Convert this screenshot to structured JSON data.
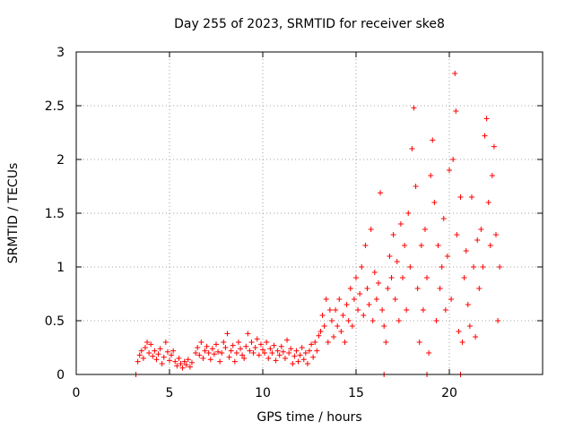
{
  "chart_data": {
    "type": "scatter",
    "title": "Day 255 of 2023, SRMTID for receiver ske8",
    "xlabel": "GPS time / hours",
    "ylabel": "SRMTID / TECUs",
    "xlim": [
      0,
      25
    ],
    "ylim": [
      0,
      3
    ],
    "x_ticks": [
      0,
      5,
      10,
      15,
      20
    ],
    "x_tick_labels": [
      "0",
      "5",
      "10",
      "15",
      "20"
    ],
    "y_ticks": [
      0,
      0.5,
      1,
      1.5,
      2,
      2.5,
      3
    ],
    "y_tick_labels": [
      "0",
      "0.5",
      "1",
      "1.5",
      "2",
      "2.5",
      "3"
    ],
    "grid": true,
    "marker": "+",
    "color": "#ff0000",
    "series": [
      {
        "name": "SRMTID",
        "points": [
          [
            3.2,
            0.0
          ],
          [
            16.5,
            0.0
          ],
          [
            18.8,
            0.0
          ],
          [
            20.6,
            0.0
          ],
          [
            3.3,
            0.12
          ],
          [
            3.4,
            0.18
          ],
          [
            3.5,
            0.22
          ],
          [
            3.6,
            0.15
          ],
          [
            3.7,
            0.25
          ],
          [
            3.8,
            0.3
          ],
          [
            3.9,
            0.2
          ],
          [
            4.0,
            0.28
          ],
          [
            4.1,
            0.17
          ],
          [
            4.2,
            0.22
          ],
          [
            4.3,
            0.14
          ],
          [
            4.4,
            0.19
          ],
          [
            4.5,
            0.24
          ],
          [
            4.6,
            0.1
          ],
          [
            4.7,
            0.16
          ],
          [
            4.8,
            0.3
          ],
          [
            4.9,
            0.21
          ],
          [
            5.0,
            0.13
          ],
          [
            5.1,
            0.18
          ],
          [
            5.2,
            0.22
          ],
          [
            5.3,
            0.12
          ],
          [
            5.4,
            0.08
          ],
          [
            5.5,
            0.15
          ],
          [
            5.6,
            0.1
          ],
          [
            5.7,
            0.06
          ],
          [
            5.8,
            0.12
          ],
          [
            5.9,
            0.09
          ],
          [
            6.0,
            0.14
          ],
          [
            6.1,
            0.07
          ],
          [
            6.2,
            0.11
          ],
          [
            6.4,
            0.2
          ],
          [
            6.5,
            0.25
          ],
          [
            6.6,
            0.18
          ],
          [
            6.7,
            0.3
          ],
          [
            6.8,
            0.15
          ],
          [
            6.9,
            0.22
          ],
          [
            7.0,
            0.26
          ],
          [
            7.1,
            0.2
          ],
          [
            7.2,
            0.14
          ],
          [
            7.3,
            0.24
          ],
          [
            7.4,
            0.19
          ],
          [
            7.5,
            0.28
          ],
          [
            7.6,
            0.21
          ],
          [
            7.7,
            0.12
          ],
          [
            7.8,
            0.2
          ],
          [
            7.9,
            0.3
          ],
          [
            8.0,
            0.25
          ],
          [
            8.1,
            0.38
          ],
          [
            8.2,
            0.16
          ],
          [
            8.3,
            0.22
          ],
          [
            8.4,
            0.27
          ],
          [
            8.5,
            0.12
          ],
          [
            8.6,
            0.2
          ],
          [
            8.7,
            0.3
          ],
          [
            8.8,
            0.24
          ],
          [
            8.9,
            0.18
          ],
          [
            9.0,
            0.15
          ],
          [
            9.1,
            0.26
          ],
          [
            9.2,
            0.38
          ],
          [
            9.3,
            0.22
          ],
          [
            9.4,
            0.3
          ],
          [
            9.5,
            0.2
          ],
          [
            9.6,
            0.25
          ],
          [
            9.7,
            0.33
          ],
          [
            9.8,
            0.18
          ],
          [
            9.9,
            0.28
          ],
          [
            10.0,
            0.23
          ],
          [
            10.1,
            0.2
          ],
          [
            10.2,
            0.3
          ],
          [
            10.3,
            0.15
          ],
          [
            10.4,
            0.24
          ],
          [
            10.5,
            0.2
          ],
          [
            10.6,
            0.27
          ],
          [
            10.7,
            0.13
          ],
          [
            10.8,
            0.22
          ],
          [
            10.9,
            0.18
          ],
          [
            11.0,
            0.26
          ],
          [
            11.1,
            0.21
          ],
          [
            11.2,
            0.15
          ],
          [
            11.3,
            0.32
          ],
          [
            11.4,
            0.2
          ],
          [
            11.5,
            0.24
          ],
          [
            11.6,
            0.1
          ],
          [
            11.7,
            0.17
          ],
          [
            11.8,
            0.22
          ],
          [
            11.9,
            0.12
          ],
          [
            12.0,
            0.18
          ],
          [
            12.1,
            0.25
          ],
          [
            12.2,
            0.14
          ],
          [
            12.3,
            0.2
          ],
          [
            12.4,
            0.1
          ],
          [
            12.5,
            0.22
          ],
          [
            12.6,
            0.28
          ],
          [
            12.7,
            0.16
          ],
          [
            12.8,
            0.3
          ],
          [
            12.9,
            0.22
          ],
          [
            13.0,
            0.36
          ],
          [
            13.1,
            0.4
          ],
          [
            13.2,
            0.55
          ],
          [
            13.3,
            0.45
          ],
          [
            13.4,
            0.7
          ],
          [
            13.5,
            0.3
          ],
          [
            13.6,
            0.6
          ],
          [
            13.7,
            0.5
          ],
          [
            13.8,
            0.35
          ],
          [
            13.9,
            0.6
          ],
          [
            14.0,
            0.45
          ],
          [
            14.1,
            0.7
          ],
          [
            14.2,
            0.4
          ],
          [
            14.3,
            0.55
          ],
          [
            14.4,
            0.3
          ],
          [
            14.5,
            0.65
          ],
          [
            14.6,
            0.5
          ],
          [
            14.7,
            0.8
          ],
          [
            14.8,
            0.45
          ],
          [
            14.9,
            0.7
          ],
          [
            15.0,
            0.9
          ],
          [
            15.1,
            0.6
          ],
          [
            15.2,
            0.75
          ],
          [
            15.3,
            1.0
          ],
          [
            15.4,
            0.55
          ],
          [
            15.5,
            1.2
          ],
          [
            15.6,
            0.8
          ],
          [
            15.7,
            0.65
          ],
          [
            15.8,
            1.35
          ],
          [
            15.9,
            0.5
          ],
          [
            16.0,
            0.95
          ],
          [
            16.1,
            0.7
          ],
          [
            16.2,
            0.85
          ],
          [
            16.3,
            1.69
          ],
          [
            16.4,
            0.6
          ],
          [
            16.5,
            0.45
          ],
          [
            16.6,
            0.3
          ],
          [
            16.7,
            0.8
          ],
          [
            16.8,
            1.1
          ],
          [
            16.9,
            0.9
          ],
          [
            17.0,
            1.3
          ],
          [
            17.1,
            0.7
          ],
          [
            17.2,
            1.05
          ],
          [
            17.3,
            0.5
          ],
          [
            17.4,
            1.4
          ],
          [
            17.5,
            0.9
          ],
          [
            17.6,
            1.2
          ],
          [
            17.7,
            0.6
          ],
          [
            17.8,
            1.5
          ],
          [
            17.9,
            1.0
          ],
          [
            18.0,
            2.1
          ],
          [
            18.1,
            2.48
          ],
          [
            18.2,
            1.75
          ],
          [
            18.3,
            0.8
          ],
          [
            18.4,
            0.3
          ],
          [
            18.5,
            1.2
          ],
          [
            18.6,
            0.6
          ],
          [
            18.7,
            1.35
          ],
          [
            18.8,
            0.9
          ],
          [
            18.9,
            0.2
          ],
          [
            19.0,
            1.85
          ],
          [
            19.1,
            2.18
          ],
          [
            19.2,
            1.6
          ],
          [
            19.3,
            0.5
          ],
          [
            19.4,
            1.2
          ],
          [
            19.5,
            0.8
          ],
          [
            19.6,
            1.0
          ],
          [
            19.7,
            1.45
          ],
          [
            19.8,
            0.6
          ],
          [
            19.9,
            1.1
          ],
          [
            20.0,
            1.9
          ],
          [
            20.1,
            0.7
          ],
          [
            20.2,
            2.0
          ],
          [
            20.3,
            2.8
          ],
          [
            20.35,
            2.45
          ],
          [
            20.4,
            1.3
          ],
          [
            20.5,
            0.4
          ],
          [
            20.6,
            1.65
          ],
          [
            20.7,
            0.3
          ],
          [
            20.8,
            0.9
          ],
          [
            20.9,
            1.15
          ],
          [
            21.0,
            0.65
          ],
          [
            21.1,
            0.45
          ],
          [
            21.2,
            1.65
          ],
          [
            21.3,
            1.0
          ],
          [
            21.4,
            0.35
          ],
          [
            21.5,
            1.25
          ],
          [
            21.6,
            0.8
          ],
          [
            21.7,
            1.35
          ],
          [
            21.8,
            1.0
          ],
          [
            21.9,
            2.22
          ],
          [
            22.0,
            2.38
          ],
          [
            22.1,
            1.6
          ],
          [
            22.2,
            1.2
          ],
          [
            22.3,
            1.85
          ],
          [
            22.4,
            2.12
          ],
          [
            22.5,
            1.3
          ],
          [
            22.6,
            0.5
          ],
          [
            22.7,
            1.0
          ]
        ]
      }
    ]
  }
}
